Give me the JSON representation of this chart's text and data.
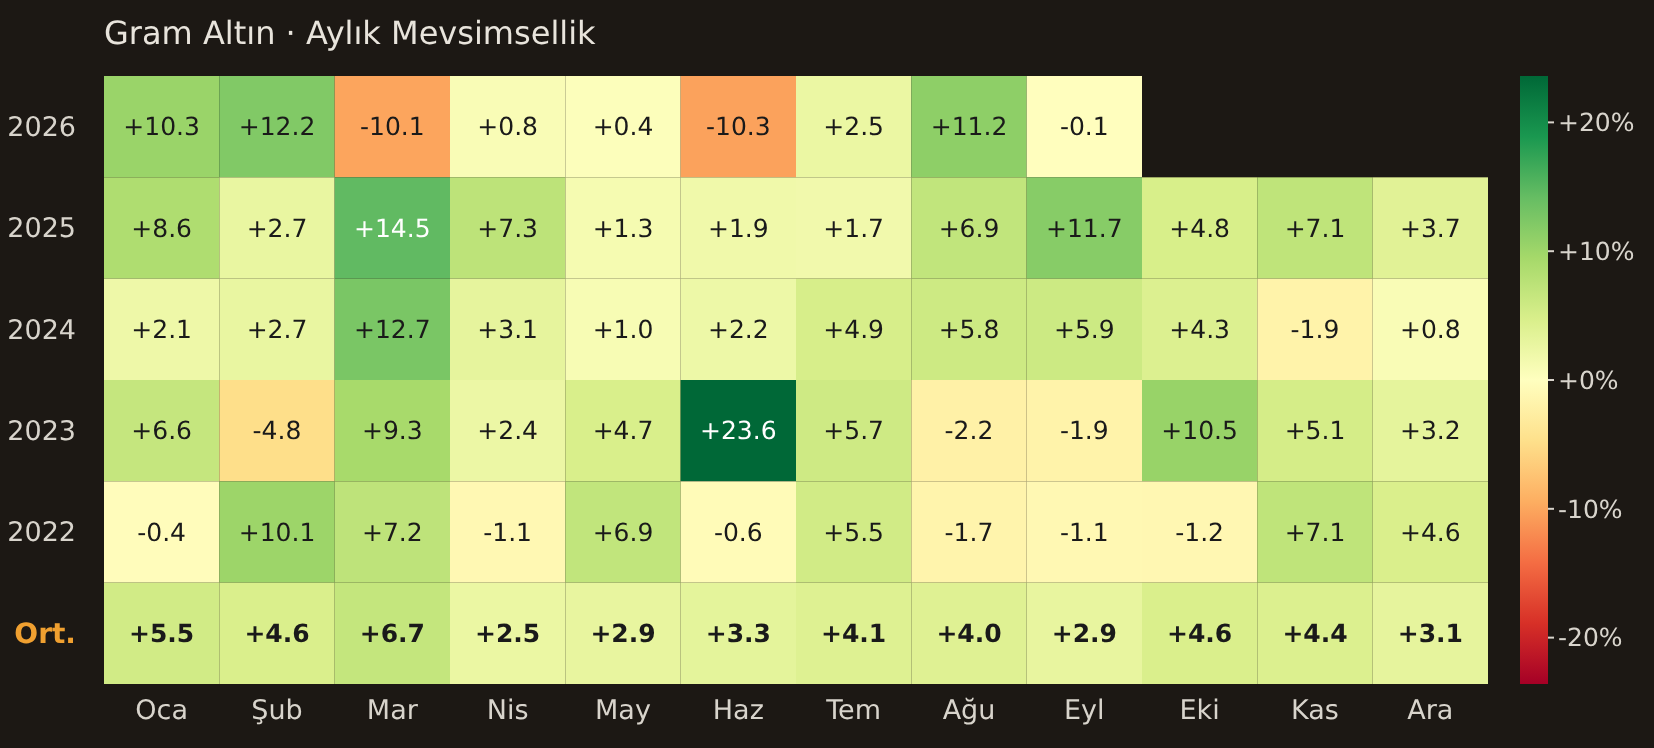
{
  "chart_data": {
    "type": "heatmap",
    "title": "Gram Altın · Aylık Mevsimsellik",
    "categories": [
      "Oca",
      "Şub",
      "Mar",
      "Nis",
      "May",
      "Haz",
      "Tem",
      "Ağu",
      "Eyl",
      "Eki",
      "Kas",
      "Ara"
    ],
    "y_categories": [
      "2026",
      "2025",
      "2024",
      "2023",
      "2022",
      "Ort."
    ],
    "cells": [
      [
        10.3,
        12.2,
        -10.1,
        0.8,
        0.4,
        -10.3,
        2.5,
        11.2,
        -0.1,
        null,
        null,
        null
      ],
      [
        8.6,
        2.7,
        14.5,
        7.3,
        1.3,
        1.9,
        1.7,
        6.9,
        11.7,
        4.8,
        7.1,
        3.7
      ],
      [
        2.1,
        2.7,
        12.7,
        3.1,
        1.0,
        2.2,
        4.9,
        5.8,
        5.9,
        4.3,
        -1.9,
        0.8
      ],
      [
        6.6,
        -4.8,
        9.3,
        2.4,
        4.7,
        23.6,
        5.7,
        -2.2,
        -1.9,
        10.5,
        5.1,
        3.2
      ],
      [
        -0.4,
        10.1,
        7.2,
        -1.1,
        6.9,
        -0.6,
        5.5,
        -1.7,
        -1.1,
        -1.2,
        7.1,
        4.6
      ],
      [
        5.5,
        4.6,
        6.7,
        2.5,
        2.9,
        3.3,
        4.1,
        4.0,
        2.9,
        4.6,
        4.4,
        3.1
      ]
    ],
    "cell_labels": [
      [
        "+10.3",
        "+12.2",
        "-10.1",
        "+0.8",
        "+0.4",
        "-10.3",
        "+2.5",
        "+11.2",
        "-0.1",
        null,
        null,
        null
      ],
      [
        "+8.6",
        "+2.7",
        "+14.5",
        "+7.3",
        "+1.3",
        "+1.9",
        "+1.7",
        "+6.9",
        "+11.7",
        "+4.8",
        "+7.1",
        "+3.7"
      ],
      [
        "+2.1",
        "+2.7",
        "+12.7",
        "+3.1",
        "+1.0",
        "+2.2",
        "+4.9",
        "+5.8",
        "+5.9",
        "+4.3",
        "-1.9",
        "+0.8"
      ],
      [
        "+6.6",
        "-4.8",
        "+9.3",
        "+2.4",
        "+4.7",
        "+23.6",
        "+5.7",
        "-2.2",
        "-1.9",
        "+10.5",
        "+5.1",
        "+3.2"
      ],
      [
        "-0.4",
        "+10.1",
        "+7.2",
        "-1.1",
        "+6.9",
        "-0.6",
        "+5.5",
        "-1.7",
        "-1.1",
        "-1.2",
        "+7.1",
        "+4.6"
      ],
      [
        "+5.5",
        "+4.6",
        "+6.7",
        "+2.5",
        "+2.9",
        "+3.3",
        "+4.1",
        "+4.0",
        "+2.9",
        "+4.6",
        "+4.4",
        "+3.1"
      ]
    ],
    "clim": [
      -23.6,
      23.6
    ],
    "cticks": [
      {
        "value": 20,
        "label": "+20%"
      },
      {
        "value": 10,
        "label": "+10%"
      },
      {
        "value": 0,
        "label": "+0%"
      },
      {
        "value": -10,
        "label": "-10%"
      },
      {
        "value": -20,
        "label": "-20%"
      }
    ]
  }
}
